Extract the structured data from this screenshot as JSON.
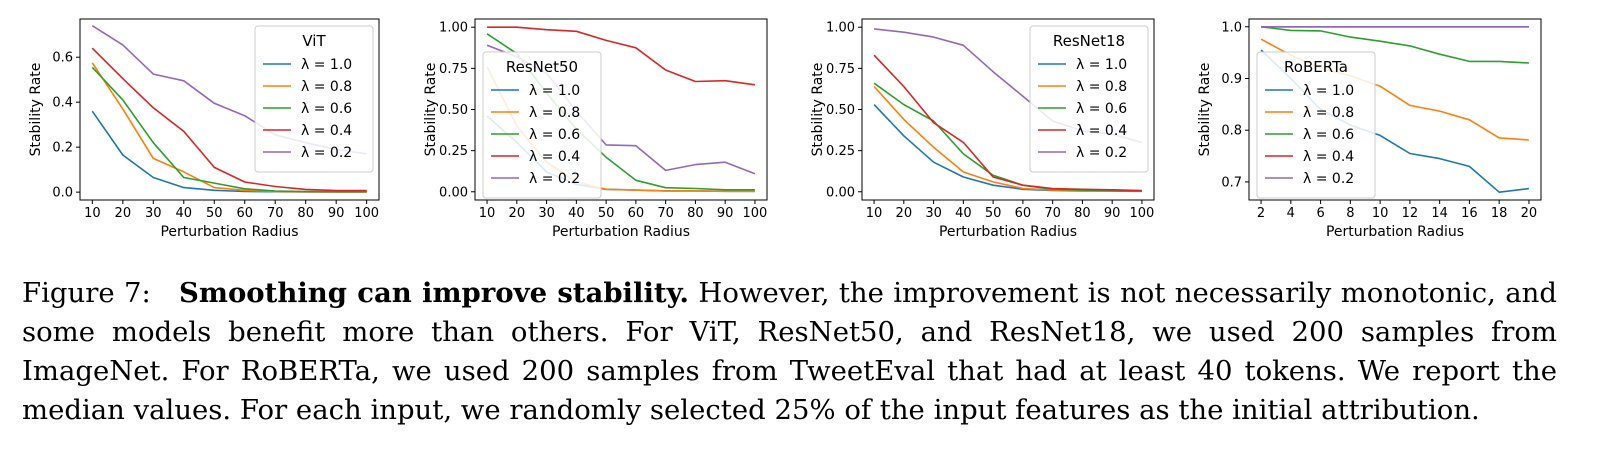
{
  "colors": {
    "lambda_1.0": "#1f77b4",
    "lambda_0.8": "#ff7f0e",
    "lambda_0.6": "#2ca02c",
    "lambda_0.4": "#d62728",
    "lambda_0.2": "#9467bd"
  },
  "chart_data": [
    {
      "type": "line",
      "legend_title": "ViT",
      "legend_position": "upper-right",
      "xlabel": "Perturbation Radius",
      "ylabel": "Stability Rate",
      "x": [
        10,
        20,
        30,
        40,
        50,
        60,
        70,
        80,
        90,
        100
      ],
      "xticks": [
        10,
        20,
        30,
        40,
        50,
        60,
        70,
        80,
        90,
        100
      ],
      "yticks": [
        0.0,
        0.2,
        0.4,
        0.6
      ],
      "ytick_labels": [
        "0.0",
        "0.2",
        "0.4",
        "0.6"
      ],
      "ylim": [
        -0.035,
        0.77
      ],
      "series": [
        {
          "name": "λ = 1.0",
          "values": [
            0.36,
            0.165,
            0.065,
            0.02,
            0.008,
            0.003,
            0.002,
            0.001,
            0.001,
            0.001
          ]
        },
        {
          "name": "λ = 0.8",
          "values": [
            0.575,
            0.37,
            0.15,
            0.09,
            0.02,
            0.008,
            0.003,
            0.002,
            0.001,
            0.001
          ]
        },
        {
          "name": "λ = 0.6",
          "values": [
            0.555,
            0.41,
            0.22,
            0.065,
            0.04,
            0.015,
            0.005,
            0.003,
            0.002,
            0.002
          ]
        },
        {
          "name": "λ = 0.4",
          "values": [
            0.64,
            0.505,
            0.375,
            0.27,
            0.11,
            0.045,
            0.025,
            0.012,
            0.007,
            0.007
          ]
        },
        {
          "name": "λ = 0.2",
          "values": [
            0.74,
            0.655,
            0.525,
            0.495,
            0.395,
            0.34,
            0.255,
            0.22,
            0.19,
            0.17
          ]
        }
      ]
    },
    {
      "type": "line",
      "legend_title": "ResNet50",
      "legend_position": "center-left",
      "xlabel": "Perturbation Radius",
      "ylabel": "Stability Rate",
      "x": [
        10,
        20,
        30,
        40,
        50,
        60,
        70,
        80,
        90,
        100
      ],
      "xticks": [
        10,
        20,
        30,
        40,
        50,
        60,
        70,
        80,
        90,
        100
      ],
      "yticks": [
        0.0,
        0.25,
        0.5,
        0.75,
        1.0
      ],
      "ytick_labels": [
        "0.00",
        "0.25",
        "0.50",
        "0.75",
        "1.00"
      ],
      "ylim": [
        -0.05,
        1.05
      ],
      "series": [
        {
          "name": "λ = 1.0",
          "values": [
            0.46,
            0.3,
            0.12,
            0.045,
            0.015,
            0.01,
            0.005,
            0.005,
            0.003,
            0.003
          ]
        },
        {
          "name": "λ = 0.8",
          "values": [
            0.76,
            0.4,
            0.18,
            0.06,
            0.015,
            0.01,
            0.005,
            0.005,
            0.003,
            0.003
          ]
        },
        {
          "name": "λ = 0.6",
          "values": [
            0.96,
            0.84,
            0.6,
            0.38,
            0.21,
            0.07,
            0.025,
            0.02,
            0.012,
            0.012
          ]
        },
        {
          "name": "λ = 0.4",
          "values": [
            1.0,
            1.0,
            0.985,
            0.975,
            0.92,
            0.875,
            0.74,
            0.67,
            0.675,
            0.65
          ]
        },
        {
          "name": "λ = 0.2",
          "values": [
            0.89,
            0.82,
            0.72,
            0.49,
            0.285,
            0.28,
            0.13,
            0.165,
            0.18,
            0.11
          ]
        }
      ]
    },
    {
      "type": "line",
      "legend_title": "ResNet18",
      "legend_position": "upper-right",
      "xlabel": "Perturbation Radius",
      "ylabel": "Stability Rate",
      "x": [
        10,
        20,
        30,
        40,
        50,
        60,
        70,
        80,
        90,
        100
      ],
      "xticks": [
        10,
        20,
        30,
        40,
        50,
        60,
        70,
        80,
        90,
        100
      ],
      "yticks": [
        0.0,
        0.25,
        0.5,
        0.75,
        1.0
      ],
      "ytick_labels": [
        "0.00",
        "0.25",
        "0.50",
        "0.75",
        "1.00"
      ],
      "ylim": [
        -0.05,
        1.05
      ],
      "series": [
        {
          "name": "λ = 1.0",
          "values": [
            0.53,
            0.34,
            0.18,
            0.09,
            0.04,
            0.015,
            0.008,
            0.005,
            0.004,
            0.003
          ]
        },
        {
          "name": "λ = 0.8",
          "values": [
            0.64,
            0.44,
            0.27,
            0.12,
            0.06,
            0.02,
            0.01,
            0.008,
            0.006,
            0.005
          ]
        },
        {
          "name": "λ = 0.6",
          "values": [
            0.66,
            0.53,
            0.43,
            0.23,
            0.1,
            0.04,
            0.015,
            0.01,
            0.008,
            0.005
          ]
        },
        {
          "name": "λ = 0.4",
          "values": [
            0.83,
            0.64,
            0.42,
            0.3,
            0.09,
            0.04,
            0.02,
            0.015,
            0.012,
            0.008
          ]
        },
        {
          "name": "λ = 0.2",
          "values": [
            0.99,
            0.97,
            0.94,
            0.89,
            0.73,
            0.58,
            0.43,
            0.37,
            0.35,
            0.3
          ]
        }
      ]
    },
    {
      "type": "line",
      "legend_title": "RoBERTa",
      "legend_position": "center-left",
      "xlabel": "Perturbation Radius",
      "ylabel": "Stability Rate",
      "x": [
        2,
        4,
        6,
        8,
        10,
        12,
        14,
        16,
        18,
        20
      ],
      "xticks": [
        2,
        4,
        6,
        8,
        10,
        12,
        14,
        16,
        18,
        20
      ],
      "yticks": [
        0.7,
        0.8,
        0.9,
        1.0
      ],
      "ytick_labels": [
        "0.7",
        "0.8",
        "0.9",
        "1.0"
      ],
      "ylim": [
        0.665,
        1.015
      ],
      "series": [
        {
          "name": "λ = 1.0",
          "values": [
            0.955,
            0.9,
            0.84,
            0.81,
            0.79,
            0.755,
            0.745,
            0.73,
            0.68,
            0.687
          ]
        },
        {
          "name": "λ = 0.8",
          "values": [
            0.976,
            0.945,
            0.92,
            0.905,
            0.885,
            0.848,
            0.837,
            0.82,
            0.785,
            0.781
          ]
        },
        {
          "name": "λ = 0.6",
          "values": [
            1.0,
            0.993,
            0.992,
            0.98,
            0.972,
            0.963,
            0.947,
            0.933,
            0.933,
            0.93
          ]
        },
        {
          "name": "λ = 0.4",
          "values": [
            1.0,
            1.0,
            1.0,
            1.0,
            1.0,
            1.0,
            1.0,
            1.0,
            1.0,
            1.0
          ]
        },
        {
          "name": "λ = 0.2",
          "values": [
            1.0,
            1.0,
            1.0,
            1.0,
            1.0,
            1.0,
            1.0,
            1.0,
            1.0,
            1.0
          ]
        }
      ]
    }
  ],
  "caption": {
    "label": "Figure 7:",
    "bold": "Smoothing can improve stability.",
    "text": "However, the improvement is not necessarily monotonic, and some models benefit more than others. For ViT, ResNet50, and ResNet18, we used 200 samples from ImageNet. For RoBERTa, we used 200 samples from TweetEval that had at least 40 tokens. We report the median values. For each input, we randomly selected 25% of the input features as the initial attribution."
  }
}
